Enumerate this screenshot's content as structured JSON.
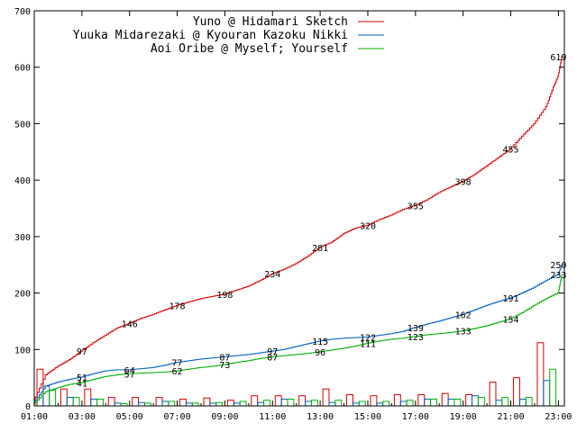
{
  "chart_data": {
    "type": "line",
    "title": "",
    "xlabel": "",
    "ylabel": "",
    "xlim_hours": [
      1,
      23.25
    ],
    "ylim": [
      0,
      700
    ],
    "x_ticks": [
      "01:00",
      "03:00",
      "05:00",
      "07:00",
      "09:00",
      "11:00",
      "13:00",
      "15:00",
      "17:00",
      "19:00",
      "21:00",
      "23:00"
    ],
    "y_ticks": [
      "0",
      "100",
      "200",
      "300",
      "400",
      "500",
      "600",
      "700"
    ],
    "legend_position": "top-right",
    "grid": false,
    "series": [
      {
        "name": "Yuno @ Hidamari Sketch",
        "color": "#d40000",
        "cumulative": [
          [
            1.0,
            8
          ],
          [
            1.5,
            55
          ],
          [
            2.0,
            70
          ],
          [
            2.5,
            82
          ],
          [
            3.0,
            97
          ],
          [
            3.5,
            112
          ],
          [
            4.0,
            125
          ],
          [
            4.5,
            138
          ],
          [
            5.0,
            146
          ],
          [
            5.5,
            155
          ],
          [
            6.0,
            162
          ],
          [
            6.5,
            170
          ],
          [
            7.0,
            178
          ],
          [
            7.5,
            184
          ],
          [
            8.0,
            190
          ],
          [
            8.5,
            194
          ],
          [
            9.0,
            198
          ],
          [
            9.5,
            205
          ],
          [
            10.0,
            212
          ],
          [
            10.5,
            222
          ],
          [
            11.0,
            234
          ],
          [
            11.5,
            242
          ],
          [
            12.0,
            252
          ],
          [
            12.5,
            265
          ],
          [
            13.0,
            281
          ],
          [
            13.5,
            290
          ],
          [
            14.0,
            305
          ],
          [
            14.5,
            315
          ],
          [
            15.0,
            320
          ],
          [
            15.5,
            330
          ],
          [
            16.0,
            338
          ],
          [
            16.5,
            348
          ],
          [
            17.0,
            355
          ],
          [
            17.5,
            365
          ],
          [
            18.0,
            378
          ],
          [
            18.5,
            388
          ],
          [
            19.0,
            398
          ],
          [
            19.5,
            410
          ],
          [
            20.0,
            425
          ],
          [
            20.5,
            440
          ],
          [
            21.0,
            455
          ],
          [
            21.5,
            478
          ],
          [
            22.0,
            500
          ],
          [
            22.5,
            530
          ],
          [
            22.8,
            565
          ],
          [
            23.0,
            585
          ],
          [
            23.15,
            619
          ]
        ],
        "labels": [
          [
            3.0,
            97,
            "97"
          ],
          [
            5.0,
            146,
            "146"
          ],
          [
            7.0,
            178,
            "178"
          ],
          [
            9.0,
            198,
            "198"
          ],
          [
            11.0,
            234,
            "234"
          ],
          [
            13.0,
            281,
            "281"
          ],
          [
            15.0,
            320,
            "320"
          ],
          [
            17.0,
            355,
            "355"
          ],
          [
            19.0,
            398,
            "398"
          ],
          [
            21.0,
            455,
            "455"
          ],
          [
            23.0,
            619,
            "619"
          ]
        ],
        "hourly_bars": [
          65,
          30,
          30,
          15,
          15,
          15,
          12,
          14,
          10,
          18,
          18,
          18,
          30,
          20,
          18,
          20,
          20,
          22,
          20,
          42,
          50,
          112,
          0
        ]
      },
      {
        "name": "Yuuka Midarezaki @ Kyouran Kazoku Nikki",
        "color": "#0060c0",
        "cumulative": [
          [
            1.0,
            5
          ],
          [
            1.5,
            35
          ],
          [
            2.0,
            42
          ],
          [
            2.5,
            47
          ],
          [
            3.0,
            51
          ],
          [
            3.5,
            57
          ],
          [
            4.0,
            62
          ],
          [
            4.5,
            64
          ],
          [
            5.0,
            64
          ],
          [
            5.5,
            66
          ],
          [
            6.0,
            68
          ],
          [
            6.5,
            72
          ],
          [
            7.0,
            77
          ],
          [
            7.5,
            80
          ],
          [
            8.0,
            83
          ],
          [
            8.5,
            85
          ],
          [
            9.0,
            87
          ],
          [
            9.5,
            89
          ],
          [
            10.0,
            91
          ],
          [
            10.5,
            94
          ],
          [
            11.0,
            97
          ],
          [
            11.5,
            100
          ],
          [
            12.0,
            105
          ],
          [
            12.5,
            110
          ],
          [
            13.0,
            115
          ],
          [
            13.5,
            118
          ],
          [
            14.0,
            120
          ],
          [
            14.5,
            121
          ],
          [
            15.0,
            122
          ],
          [
            15.5,
            125
          ],
          [
            16.0,
            128
          ],
          [
            16.5,
            132
          ],
          [
            17.0,
            139
          ],
          [
            17.5,
            145
          ],
          [
            18.0,
            150
          ],
          [
            18.5,
            156
          ],
          [
            19.0,
            162
          ],
          [
            19.5,
            170
          ],
          [
            20.0,
            178
          ],
          [
            20.5,
            185
          ],
          [
            21.0,
            191
          ],
          [
            21.5,
            200
          ],
          [
            22.0,
            210
          ],
          [
            22.5,
            222
          ],
          [
            23.0,
            233
          ],
          [
            23.15,
            250
          ]
        ],
        "labels": [
          [
            3.0,
            51,
            "51"
          ],
          [
            5.0,
            64,
            "64"
          ],
          [
            7.0,
            77,
            "77"
          ],
          [
            9.0,
            87,
            "87"
          ],
          [
            11.0,
            97,
            "97"
          ],
          [
            13.0,
            115,
            "115"
          ],
          [
            15.0,
            122,
            "122"
          ],
          [
            17.0,
            139,
            "139"
          ],
          [
            19.0,
            162,
            "162"
          ],
          [
            21.0,
            191,
            "191"
          ],
          [
            23.0,
            250,
            "250"
          ]
        ],
        "hourly_bars": [
          35,
          15,
          12,
          5,
          6,
          8,
          5,
          5,
          5,
          6,
          12,
          8,
          6,
          5,
          5,
          8,
          12,
          12,
          18,
          10,
          12,
          45,
          0
        ]
      },
      {
        "name": "Aoi Oribe @ Myself; Yourself",
        "color": "#00b000",
        "cumulative": [
          [
            1.0,
            3
          ],
          [
            1.5,
            25
          ],
          [
            2.0,
            32
          ],
          [
            2.5,
            38
          ],
          [
            3.0,
            41
          ],
          [
            3.5,
            47
          ],
          [
            4.0,
            52
          ],
          [
            4.5,
            55
          ],
          [
            5.0,
            57
          ],
          [
            5.5,
            58
          ],
          [
            6.0,
            59
          ],
          [
            6.5,
            60
          ],
          [
            7.0,
            62
          ],
          [
            7.5,
            65
          ],
          [
            8.0,
            68
          ],
          [
            8.5,
            70
          ],
          [
            9.0,
            73
          ],
          [
            9.5,
            77
          ],
          [
            10.0,
            80
          ],
          [
            10.5,
            84
          ],
          [
            11.0,
            87
          ],
          [
            11.5,
            89
          ],
          [
            12.0,
            91
          ],
          [
            12.5,
            93
          ],
          [
            13.0,
            96
          ],
          [
            13.5,
            99
          ],
          [
            14.0,
            102
          ],
          [
            14.5,
            106
          ],
          [
            15.0,
            111
          ],
          [
            15.5,
            115
          ],
          [
            16.0,
            118
          ],
          [
            16.5,
            120
          ],
          [
            17.0,
            123
          ],
          [
            17.5,
            126
          ],
          [
            18.0,
            128
          ],
          [
            18.5,
            130
          ],
          [
            19.0,
            133
          ],
          [
            19.5,
            137
          ],
          [
            20.0,
            142
          ],
          [
            20.5,
            148
          ],
          [
            21.0,
            154
          ],
          [
            21.5,
            165
          ],
          [
            22.0,
            178
          ],
          [
            22.5,
            190
          ],
          [
            23.0,
            200
          ],
          [
            23.15,
            233
          ]
        ],
        "labels": [
          [
            3.0,
            41,
            "41"
          ],
          [
            5.0,
            57,
            "57"
          ],
          [
            7.0,
            62,
            "62"
          ],
          [
            9.0,
            73,
            "73"
          ],
          [
            11.0,
            87,
            "87"
          ],
          [
            13.0,
            96,
            "96"
          ],
          [
            15.0,
            111,
            "111"
          ],
          [
            17.0,
            123,
            "123"
          ],
          [
            19.0,
            133,
            "133"
          ],
          [
            21.0,
            154,
            "154"
          ],
          [
            23.0,
            233,
            "233"
          ]
        ],
        "hourly_bars": [
          28,
          15,
          12,
          4,
          5,
          8,
          5,
          6,
          8,
          10,
          12,
          10,
          10,
          8,
          8,
          10,
          12,
          12,
          15,
          15,
          15,
          65,
          0
        ]
      }
    ]
  }
}
